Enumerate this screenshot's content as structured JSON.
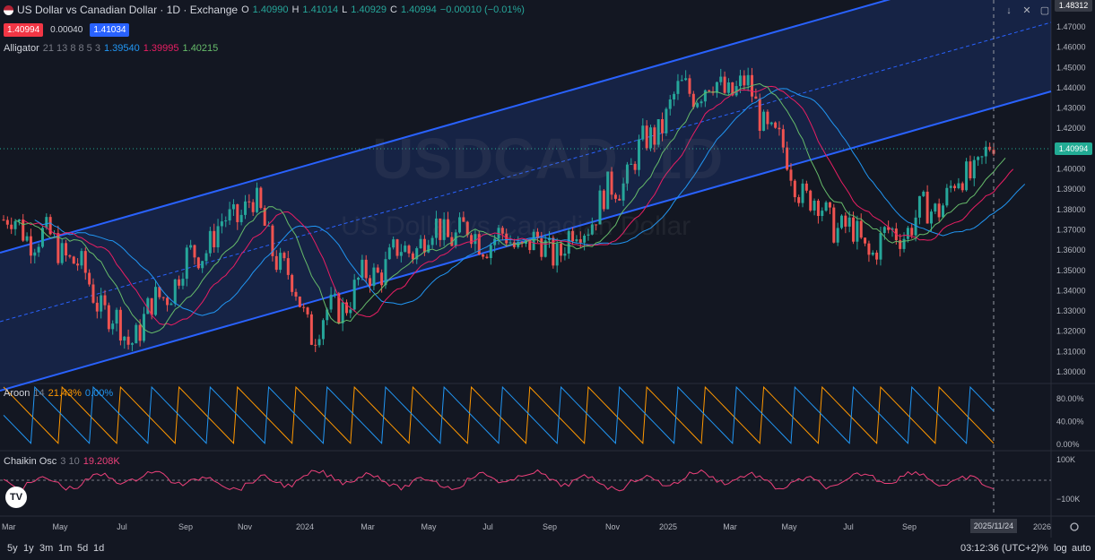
{
  "header": {
    "title": "US Dollar vs Canadian Dollar · 1D · Exchange",
    "open_label": "O",
    "open": "1.40990",
    "high_label": "H",
    "high": "1.41014",
    "low_label": "L",
    "low": "1.40929",
    "close_label": "C",
    "close": "1.40994",
    "change": "−0.00010 (−0.01%)",
    "sell_price": "1.40994",
    "spread": "0.00040",
    "buy_price": "1.41034"
  },
  "indicators": {
    "alligator": {
      "name": "Alligator",
      "params": "21 13 8 8 5 3",
      "jaw": "1.39540",
      "teeth": "1.39995",
      "lips": "1.40215"
    },
    "aroon": {
      "name": "Aroon",
      "params": "14",
      "up": "21.43%",
      "down": "0.00%"
    },
    "chaikin": {
      "name": "Chaikin Osc",
      "params": "3 10",
      "value": "19.208K"
    }
  },
  "watermark": {
    "symbol": "USDCAD, 1D",
    "description": "US Dollar vs Canadian Dollar"
  },
  "price_axis": {
    "labels": [
      "1.48312",
      "1.47000",
      "1.46000",
      "1.45000",
      "1.44000",
      "1.43000",
      "1.42000",
      "1.41000",
      "1.40000",
      "1.39000",
      "1.38000",
      "1.37000",
      "1.36000",
      "1.35000",
      "1.34000",
      "1.33000",
      "1.32000",
      "1.31000",
      "1.30000"
    ],
    "current_price": "1.40994",
    "top_price": "1.48312"
  },
  "aroon_axis": [
    "80.00%",
    "40.00%",
    "0.00%"
  ],
  "chaikin_axis": [
    "100K",
    "−100K"
  ],
  "time_axis": [
    "Mar",
    "May",
    "Jul",
    "Sep",
    "Nov",
    "2024",
    "Mar",
    "May",
    "Jul",
    "Sep",
    "Nov",
    "2025",
    "Mar",
    "May",
    "Jul",
    "Sep",
    "N",
    "2026"
  ],
  "crosshair_date": "2025/11/24",
  "bottom": {
    "timeframes": [
      "5y",
      "1y",
      "3m",
      "1m",
      "5d",
      "1d"
    ],
    "clock": "03:12:36 (UTC+2)",
    "percent_label": "%",
    "log_label": "log",
    "auto_label": "auto"
  },
  "colors": {
    "up": "#26a69a",
    "down": "#ef5350",
    "channel": "#2962ff",
    "jaw": "#2196f3",
    "teeth": "#e91e63",
    "lips": "#66bb6a",
    "aroon_up": "#ff9800",
    "aroon_down": "#2196f3",
    "chaikin": "#ec407a"
  },
  "chart_data": {
    "type": "candlestick",
    "series": [
      {
        "name": "USDCAD",
        "x": [
          "Mar",
          "May",
          "Jul",
          "Sep",
          "Nov",
          "2024",
          "Mar",
          "May",
          "Jul",
          "Sep",
          "Nov",
          "2025",
          "Mar",
          "May",
          "Jul",
          "Sep",
          "Nov"
        ],
        "values": [
          1.375,
          1.36,
          1.315,
          1.355,
          1.385,
          1.32,
          1.35,
          1.37,
          1.365,
          1.36,
          1.395,
          1.44,
          1.44,
          1.385,
          1.36,
          1.38,
          1.41
        ]
      }
    ],
    "ylim": [
      1.295,
      1.483
    ]
  }
}
